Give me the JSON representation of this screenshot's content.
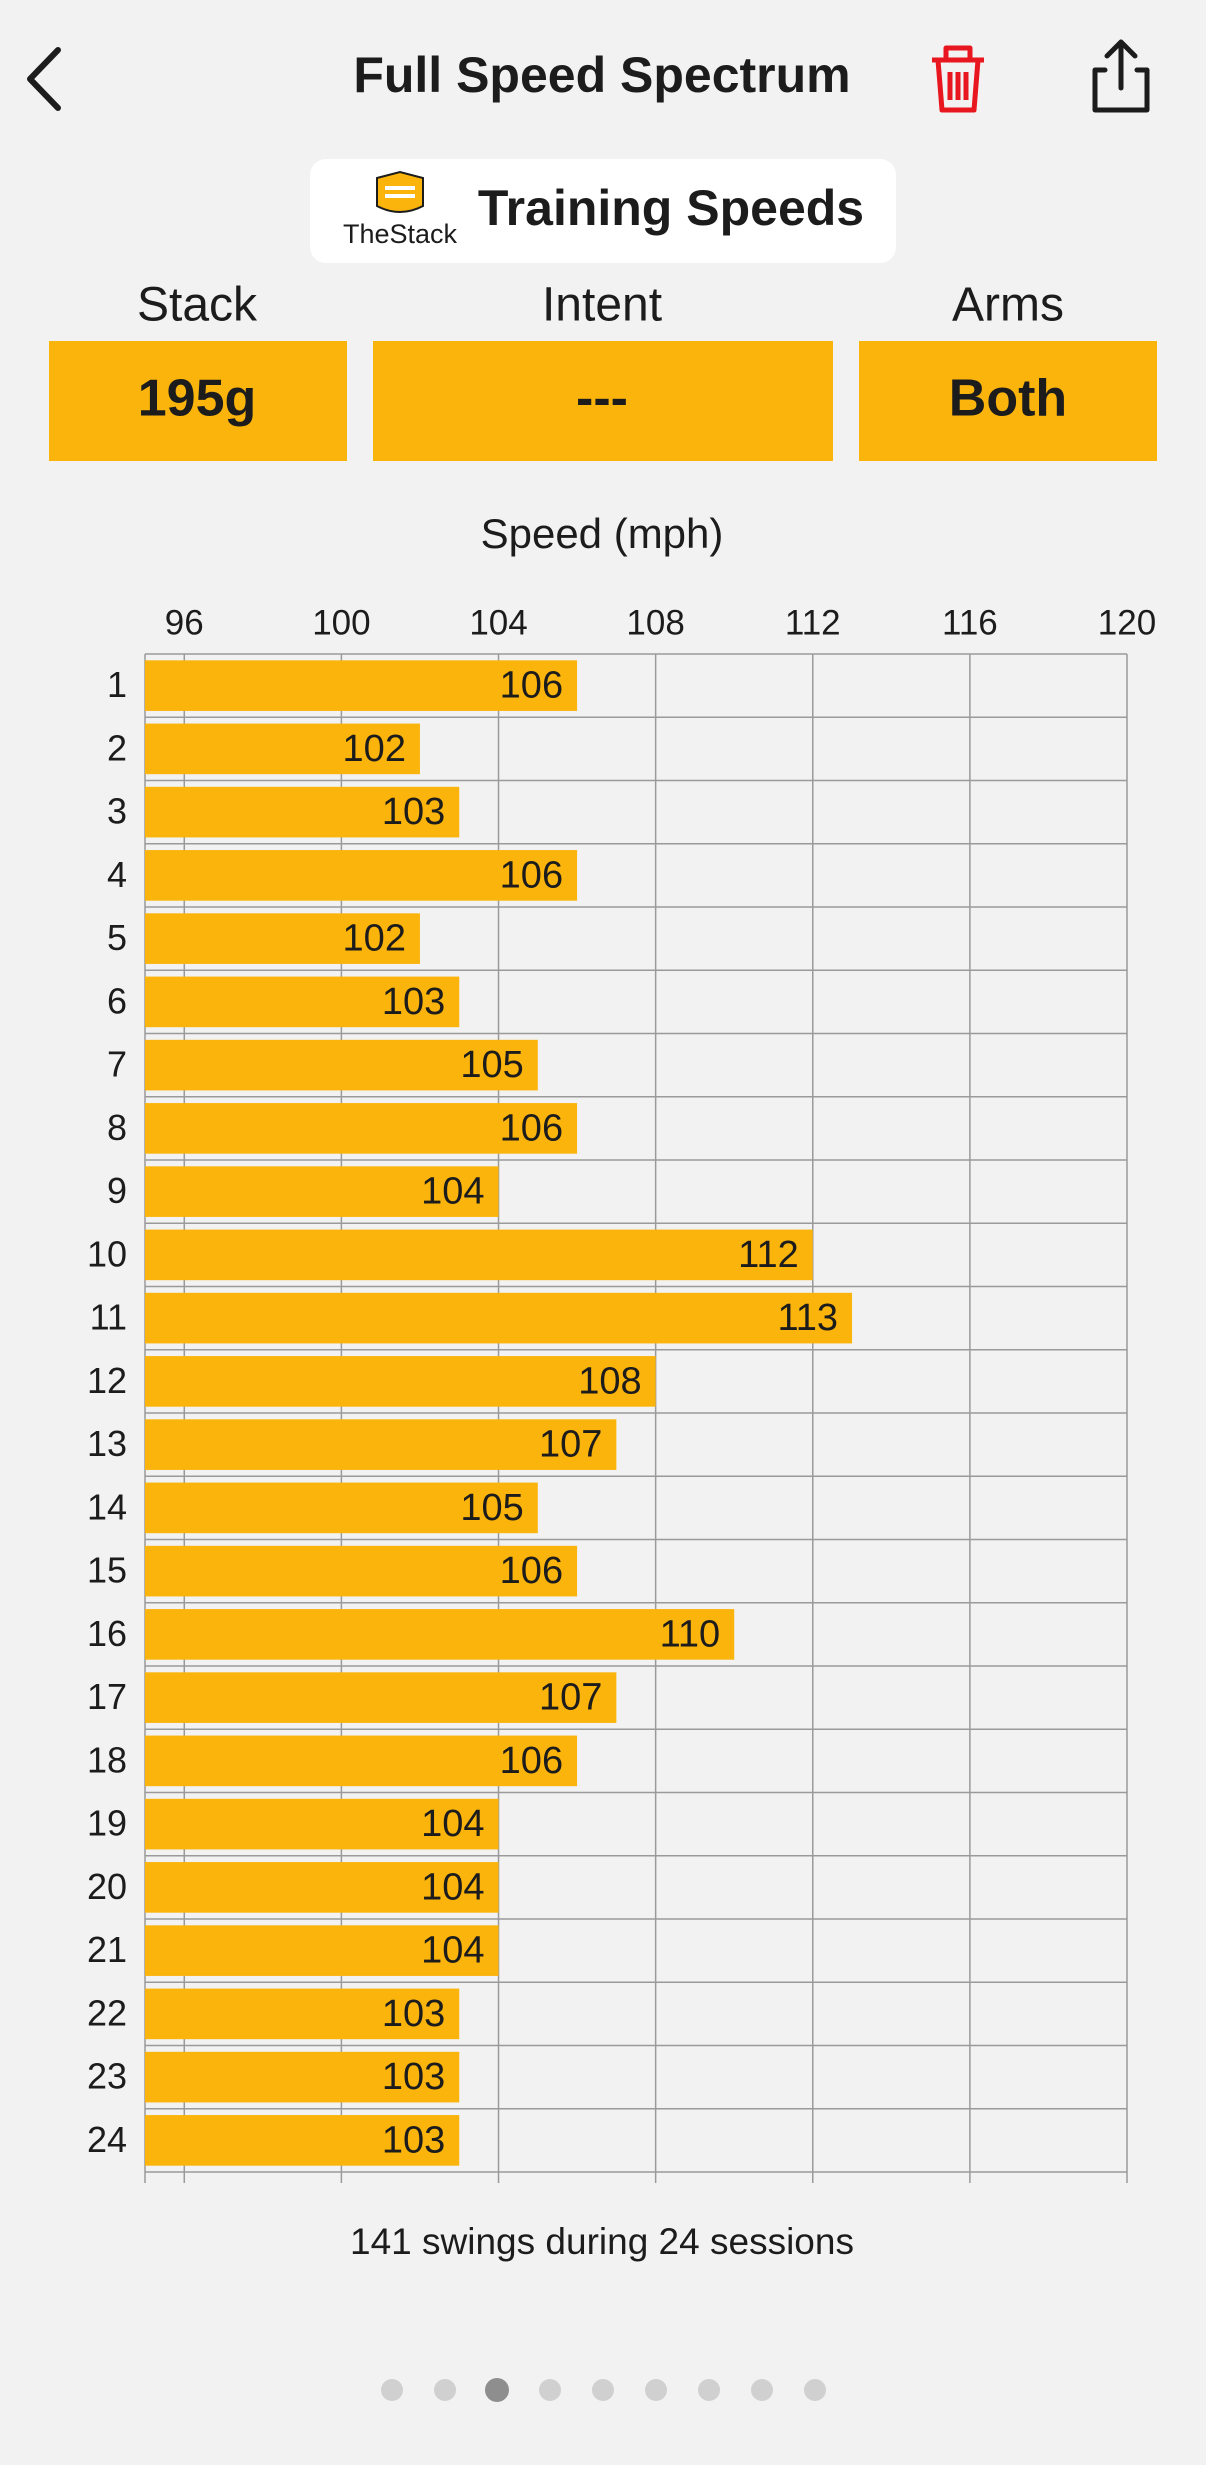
{
  "header": {
    "title": "Full Speed Spectrum"
  },
  "logo": {
    "brand": "TheStack",
    "heading": "Training Speeds"
  },
  "filters": [
    {
      "label": "Stack",
      "value": "195g"
    },
    {
      "label": "Intent",
      "value": "---"
    },
    {
      "label": "Arms",
      "value": "Both"
    }
  ],
  "chart_data": {
    "type": "hbar",
    "x_label": "Speed (mph)",
    "categories": [
      "1",
      "2",
      "3",
      "4",
      "5",
      "6",
      "7",
      "8",
      "9",
      "10",
      "11",
      "12",
      "13",
      "14",
      "15",
      "16",
      "17",
      "18",
      "19",
      "20",
      "21",
      "22",
      "23",
      "24"
    ],
    "values": [
      106,
      102,
      103,
      106,
      102,
      103,
      105,
      106,
      104,
      112,
      113,
      108,
      107,
      105,
      106,
      110,
      107,
      106,
      104,
      104,
      104,
      103,
      103,
      103
    ],
    "color": "#fbb40b",
    "xlim": [
      95,
      120
    ],
    "xticks": [
      96,
      100,
      104,
      108,
      112,
      116,
      120
    ],
    "grid": true
  },
  "footer": {
    "note": "141 swings during 24 sessions"
  }
}
